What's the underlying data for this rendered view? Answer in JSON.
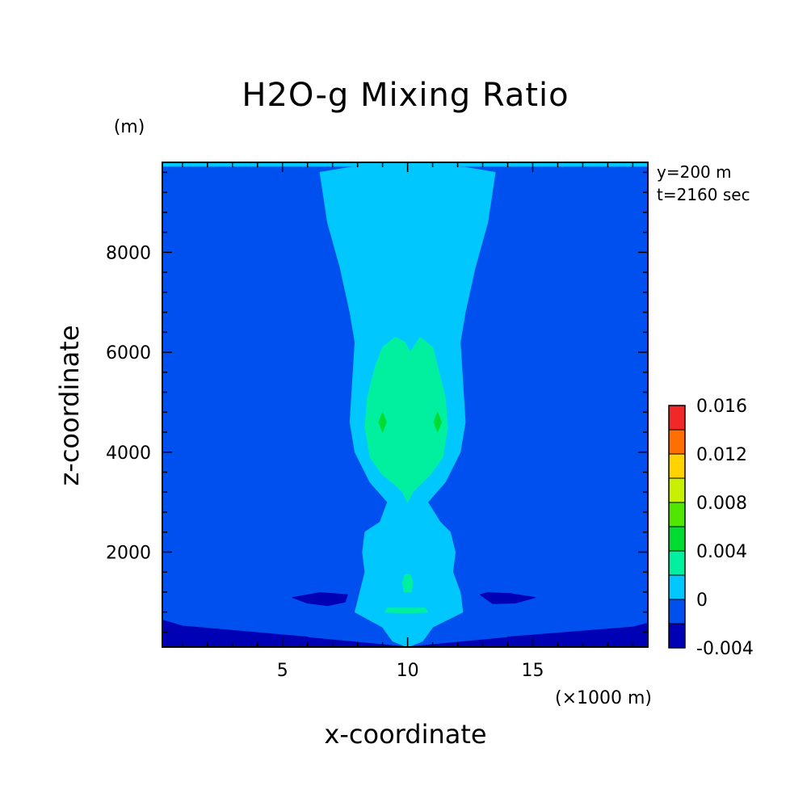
{
  "chart_data": {
    "type": "heatmap",
    "title": "H2O-g Mixing Ratio",
    "xlabel": "x-coordinate",
    "ylabel": "z-coordinate",
    "x_unit": "(×1000 m)",
    "y_unit": "(m)",
    "xlim": [
      0.2,
      19.6
    ],
    "ylim": [
      100,
      9800
    ],
    "x_ticks": [
      5,
      10,
      15
    ],
    "y_ticks": [
      2000,
      4000,
      6000,
      8000
    ],
    "annotations": [
      "y=200 m",
      "t=2160 sec"
    ],
    "colorbar": {
      "levels": [
        -0.004,
        -0.002,
        0,
        0.002,
        0.004,
        0.006,
        0.008,
        0.01,
        0.012,
        0.014,
        0.016
      ],
      "tick_labels": [
        "-0.004",
        "0",
        "0.004",
        "0.008",
        "0.012",
        "0.016"
      ],
      "tick_values": [
        -0.004,
        0,
        0.004,
        0.008,
        0.012,
        0.016
      ],
      "colors": [
        "#0000b4",
        "#0050f0",
        "#00c8ff",
        "#00f0a0",
        "#00dc32",
        "#50e600",
        "#c8f000",
        "#ffd200",
        "#ff6e00",
        "#f02828"
      ]
    },
    "regions": [
      {
        "name": "background",
        "level": "-0.002 to 0",
        "color": "#0050f0",
        "polygon": [
          [
            0.2,
            100
          ],
          [
            19.6,
            100
          ],
          [
            19.6,
            9800
          ],
          [
            0.2,
            9800
          ]
        ]
      },
      {
        "name": "top-band",
        "level": "0 to 0.002",
        "color": "#00c8ff",
        "polygon": [
          [
            0.2,
            9720
          ],
          [
            19.6,
            9720
          ],
          [
            19.6,
            9800
          ],
          [
            0.2,
            9800
          ]
        ]
      },
      {
        "name": "bottom-left-dry",
        "level": "-0.004 to -0.002",
        "color": "#0000b4",
        "polygon": [
          [
            0.2,
            100
          ],
          [
            10.0,
            100
          ],
          [
            6.0,
            290
          ],
          [
            0.2,
            460
          ],
          [
            0.2,
            100
          ]
        ]
      },
      {
        "name": "bottom-left-dry-2",
        "level": "-0.004 to -0.002",
        "color": "#0000b4",
        "polygon": [
          [
            0.2,
            230
          ],
          [
            4.0,
            270
          ],
          [
            6.0,
            300
          ],
          [
            1.0,
            520
          ],
          [
            0.2,
            640
          ]
        ]
      },
      {
        "name": "bottom-right-dry",
        "level": "-0.004 to -0.002",
        "color": "#0000b4",
        "polygon": [
          [
            10.0,
            100
          ],
          [
            19.6,
            100
          ],
          [
            19.6,
            460
          ],
          [
            14.0,
            290
          ]
        ]
      },
      {
        "name": "bottom-right-dry-2",
        "level": "-0.004 to -0.002",
        "color": "#0000b4",
        "polygon": [
          [
            19.6,
            230
          ],
          [
            15.0,
            270
          ],
          [
            14.0,
            300
          ],
          [
            19.0,
            500
          ],
          [
            19.6,
            580
          ]
        ]
      },
      {
        "name": "left-lens-dry",
        "level": "-0.004 to -0.002",
        "color": "#0000b4",
        "polygon": [
          [
            5.4,
            1090
          ],
          [
            6.5,
            1190
          ],
          [
            7.6,
            1150
          ],
          [
            7.5,
            1000
          ],
          [
            6.8,
            930
          ],
          [
            6.0,
            980
          ]
        ]
      },
      {
        "name": "right-lens-dry",
        "level": "-0.004 to -0.002",
        "color": "#0000b4",
        "polygon": [
          [
            12.9,
            1150
          ],
          [
            13.2,
            1190
          ],
          [
            14.1,
            1170
          ],
          [
            15.1,
            1090
          ],
          [
            14.3,
            980
          ],
          [
            13.4,
            970
          ]
        ]
      },
      {
        "name": "moist-plume",
        "level": "0 to 0.002",
        "color": "#00c8ff",
        "polygon": [
          [
            6.5,
            9600
          ],
          [
            7.7,
            9700
          ],
          [
            10.0,
            9740
          ],
          [
            12.3,
            9700
          ],
          [
            13.5,
            9600
          ],
          [
            13.2,
            8600
          ],
          [
            12.7,
            7700
          ],
          [
            12.3,
            6800
          ],
          [
            12.1,
            6200
          ],
          [
            12.2,
            5400
          ],
          [
            12.3,
            4600
          ],
          [
            12.1,
            4000
          ],
          [
            11.5,
            3400
          ],
          [
            10.8,
            3000
          ],
          [
            11.3,
            2600
          ],
          [
            11.7,
            2400
          ],
          [
            11.9,
            2000
          ],
          [
            11.8,
            1600
          ],
          [
            12.1,
            1200
          ],
          [
            12.2,
            800
          ],
          [
            11.0,
            500
          ],
          [
            10.6,
            220
          ],
          [
            10.0,
            100
          ],
          [
            9.4,
            220
          ],
          [
            9.0,
            500
          ],
          [
            7.9,
            800
          ],
          [
            8.1,
            1200
          ],
          [
            8.3,
            1600
          ],
          [
            8.2,
            2000
          ],
          [
            8.3,
            2400
          ],
          [
            8.9,
            2600
          ],
          [
            9.2,
            3000
          ],
          [
            8.5,
            3400
          ],
          [
            7.9,
            4000
          ],
          [
            7.7,
            4600
          ],
          [
            7.8,
            5400
          ],
          [
            7.9,
            6200
          ],
          [
            7.7,
            6800
          ],
          [
            7.3,
            7700
          ],
          [
            6.8,
            8600
          ]
        ]
      },
      {
        "name": "core-upper",
        "level": "0.002 to 0.004",
        "color": "#00f0a0",
        "polygon": [
          [
            9.5,
            6300
          ],
          [
            9.9,
            6200
          ],
          [
            10.1,
            6000
          ],
          [
            10.5,
            6300
          ],
          [
            11.0,
            6100
          ],
          [
            11.2,
            5700
          ],
          [
            11.5,
            5100
          ],
          [
            11.6,
            4500
          ],
          [
            11.4,
            3900
          ],
          [
            10.9,
            3550
          ],
          [
            10.5,
            3350
          ],
          [
            10.2,
            3200
          ],
          [
            10.0,
            3000
          ],
          [
            9.8,
            3200
          ],
          [
            9.5,
            3350
          ],
          [
            9.0,
            3550
          ],
          [
            8.5,
            3900
          ],
          [
            8.3,
            4500
          ],
          [
            8.4,
            5100
          ],
          [
            8.7,
            5700
          ],
          [
            9.0,
            6100
          ]
        ]
      },
      {
        "name": "core-lower",
        "level": "0.002 to 0.004",
        "color": "#00f0a0",
        "polygon": [
          [
            9.9,
            1550
          ],
          [
            10.1,
            1550
          ],
          [
            10.2,
            1400
          ],
          [
            10.15,
            1200
          ],
          [
            9.85,
            1200
          ],
          [
            9.8,
            1400
          ]
        ]
      },
      {
        "name": "core-base",
        "level": "0.002 to 0.004",
        "color": "#00f0a0",
        "polygon": [
          [
            9.2,
            880
          ],
          [
            10.7,
            880
          ],
          [
            10.8,
            800
          ],
          [
            10.0,
            780
          ],
          [
            9.1,
            800
          ]
        ]
      },
      {
        "name": "left-cell",
        "level": "0.004 to 0.006",
        "color": "#00dc32",
        "polygon": [
          [
            9.0,
            4800
          ],
          [
            9.15,
            4600
          ],
          [
            9.0,
            4400
          ],
          [
            8.85,
            4600
          ]
        ]
      },
      {
        "name": "right-cell",
        "level": "0.004 to 0.006",
        "color": "#00dc32",
        "polygon": [
          [
            11.2,
            4800
          ],
          [
            11.35,
            4600
          ],
          [
            11.2,
            4400
          ],
          [
            11.05,
            4600
          ]
        ]
      }
    ]
  }
}
